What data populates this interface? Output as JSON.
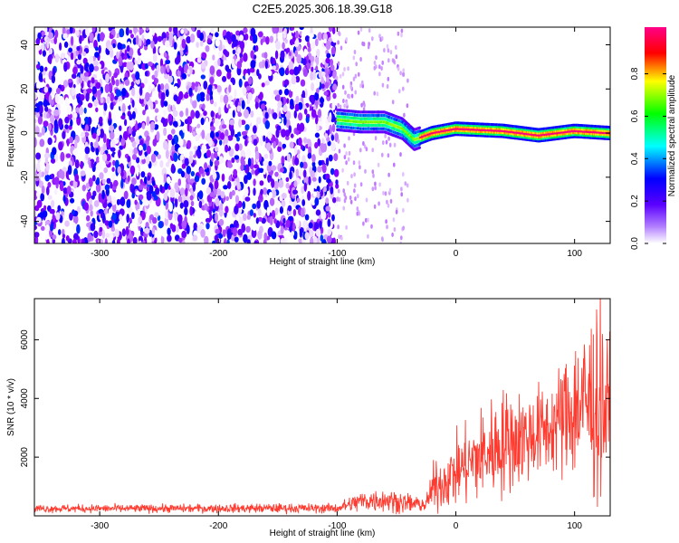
{
  "figure_title": "C2E5.2025.306.18.39.G18",
  "chart_data": [
    {
      "type": "heatmap",
      "title": "C2E5.2025.306.18.39.G18",
      "xlabel": "Height of straight line (km)",
      "ylabel": "Frequency (Hz)",
      "xlim": [
        -355,
        130
      ],
      "ylim": [
        -50,
        48
      ],
      "xticks": [
        -300,
        -200,
        -100,
        0,
        100
      ],
      "yticks": [
        -40,
        -20,
        0,
        20,
        40
      ],
      "colorbar": {
        "label": "Normalized spectral amplitude",
        "range": [
          0,
          1
        ],
        "ticks": [
          "0.0",
          "0.2",
          "0.4",
          "0.6",
          "0.8"
        ],
        "colormap": [
          "#ffffff",
          "#8800ff",
          "#0000ff",
          "#00ffff",
          "#00ff00",
          "#ffff00",
          "#ff0000",
          "#ff0088"
        ]
      },
      "regions": [
        {
          "x": [
            -355,
            -100
          ],
          "description": "broadband noise, full frequency range",
          "level": 0.12
        },
        {
          "x": [
            -100,
            -40
          ],
          "description": "sparse noise",
          "level": 0.05
        },
        {
          "x": [
            -100,
            130
          ],
          "description": "narrowband signal near 0 Hz",
          "center_hz": [
            [
              -100,
              6
            ],
            [
              -80,
              5
            ],
            [
              -60,
              5
            ],
            [
              -45,
              2
            ],
            [
              -35,
              -3
            ],
            [
              -20,
              0
            ],
            [
              0,
              2
            ],
            [
              40,
              1
            ],
            [
              70,
              -1
            ],
            [
              100,
              1
            ],
            [
              130,
              0
            ]
          ],
          "peak_level": 0.95
        }
      ],
      "grid": false,
      "legend": "colorbar right"
    },
    {
      "type": "line",
      "xlabel": "Height of straight line (km)",
      "ylabel": "SNR (10 * v/v)",
      "xlim": [
        -355,
        130
      ],
      "ylim": [
        0,
        7400
      ],
      "xticks": [
        -300,
        -200,
        -100,
        0,
        100
      ],
      "yticks": [
        2000,
        4000,
        6000
      ],
      "color": "#ff3b30",
      "series_envelope": [
        {
          "x": -355,
          "mean": 250,
          "spread": 130
        },
        {
          "x": -250,
          "mean": 250,
          "spread": 130
        },
        {
          "x": -150,
          "mean": 260,
          "spread": 150
        },
        {
          "x": -100,
          "mean": 260,
          "spread": 150
        },
        {
          "x": -80,
          "mean": 500,
          "spread": 350
        },
        {
          "x": -60,
          "mean": 550,
          "spread": 380
        },
        {
          "x": -40,
          "mean": 420,
          "spread": 300
        },
        {
          "x": -25,
          "mean": 380,
          "spread": 250
        },
        {
          "x": -20,
          "mean": 900,
          "spread": 700
        },
        {
          "x": 0,
          "mean": 1500,
          "spread": 1100
        },
        {
          "x": 20,
          "mean": 2000,
          "spread": 1500
        },
        {
          "x": 40,
          "mean": 2500,
          "spread": 1700
        },
        {
          "x": 60,
          "mean": 2700,
          "spread": 1500
        },
        {
          "x": 80,
          "mean": 3000,
          "spread": 1400
        },
        {
          "x": 100,
          "mean": 3700,
          "spread": 2400
        },
        {
          "x": 120,
          "mean": 3900,
          "spread": 3300
        },
        {
          "x": 130,
          "mean": 3500,
          "spread": 2200
        }
      ],
      "grid": false
    }
  ]
}
